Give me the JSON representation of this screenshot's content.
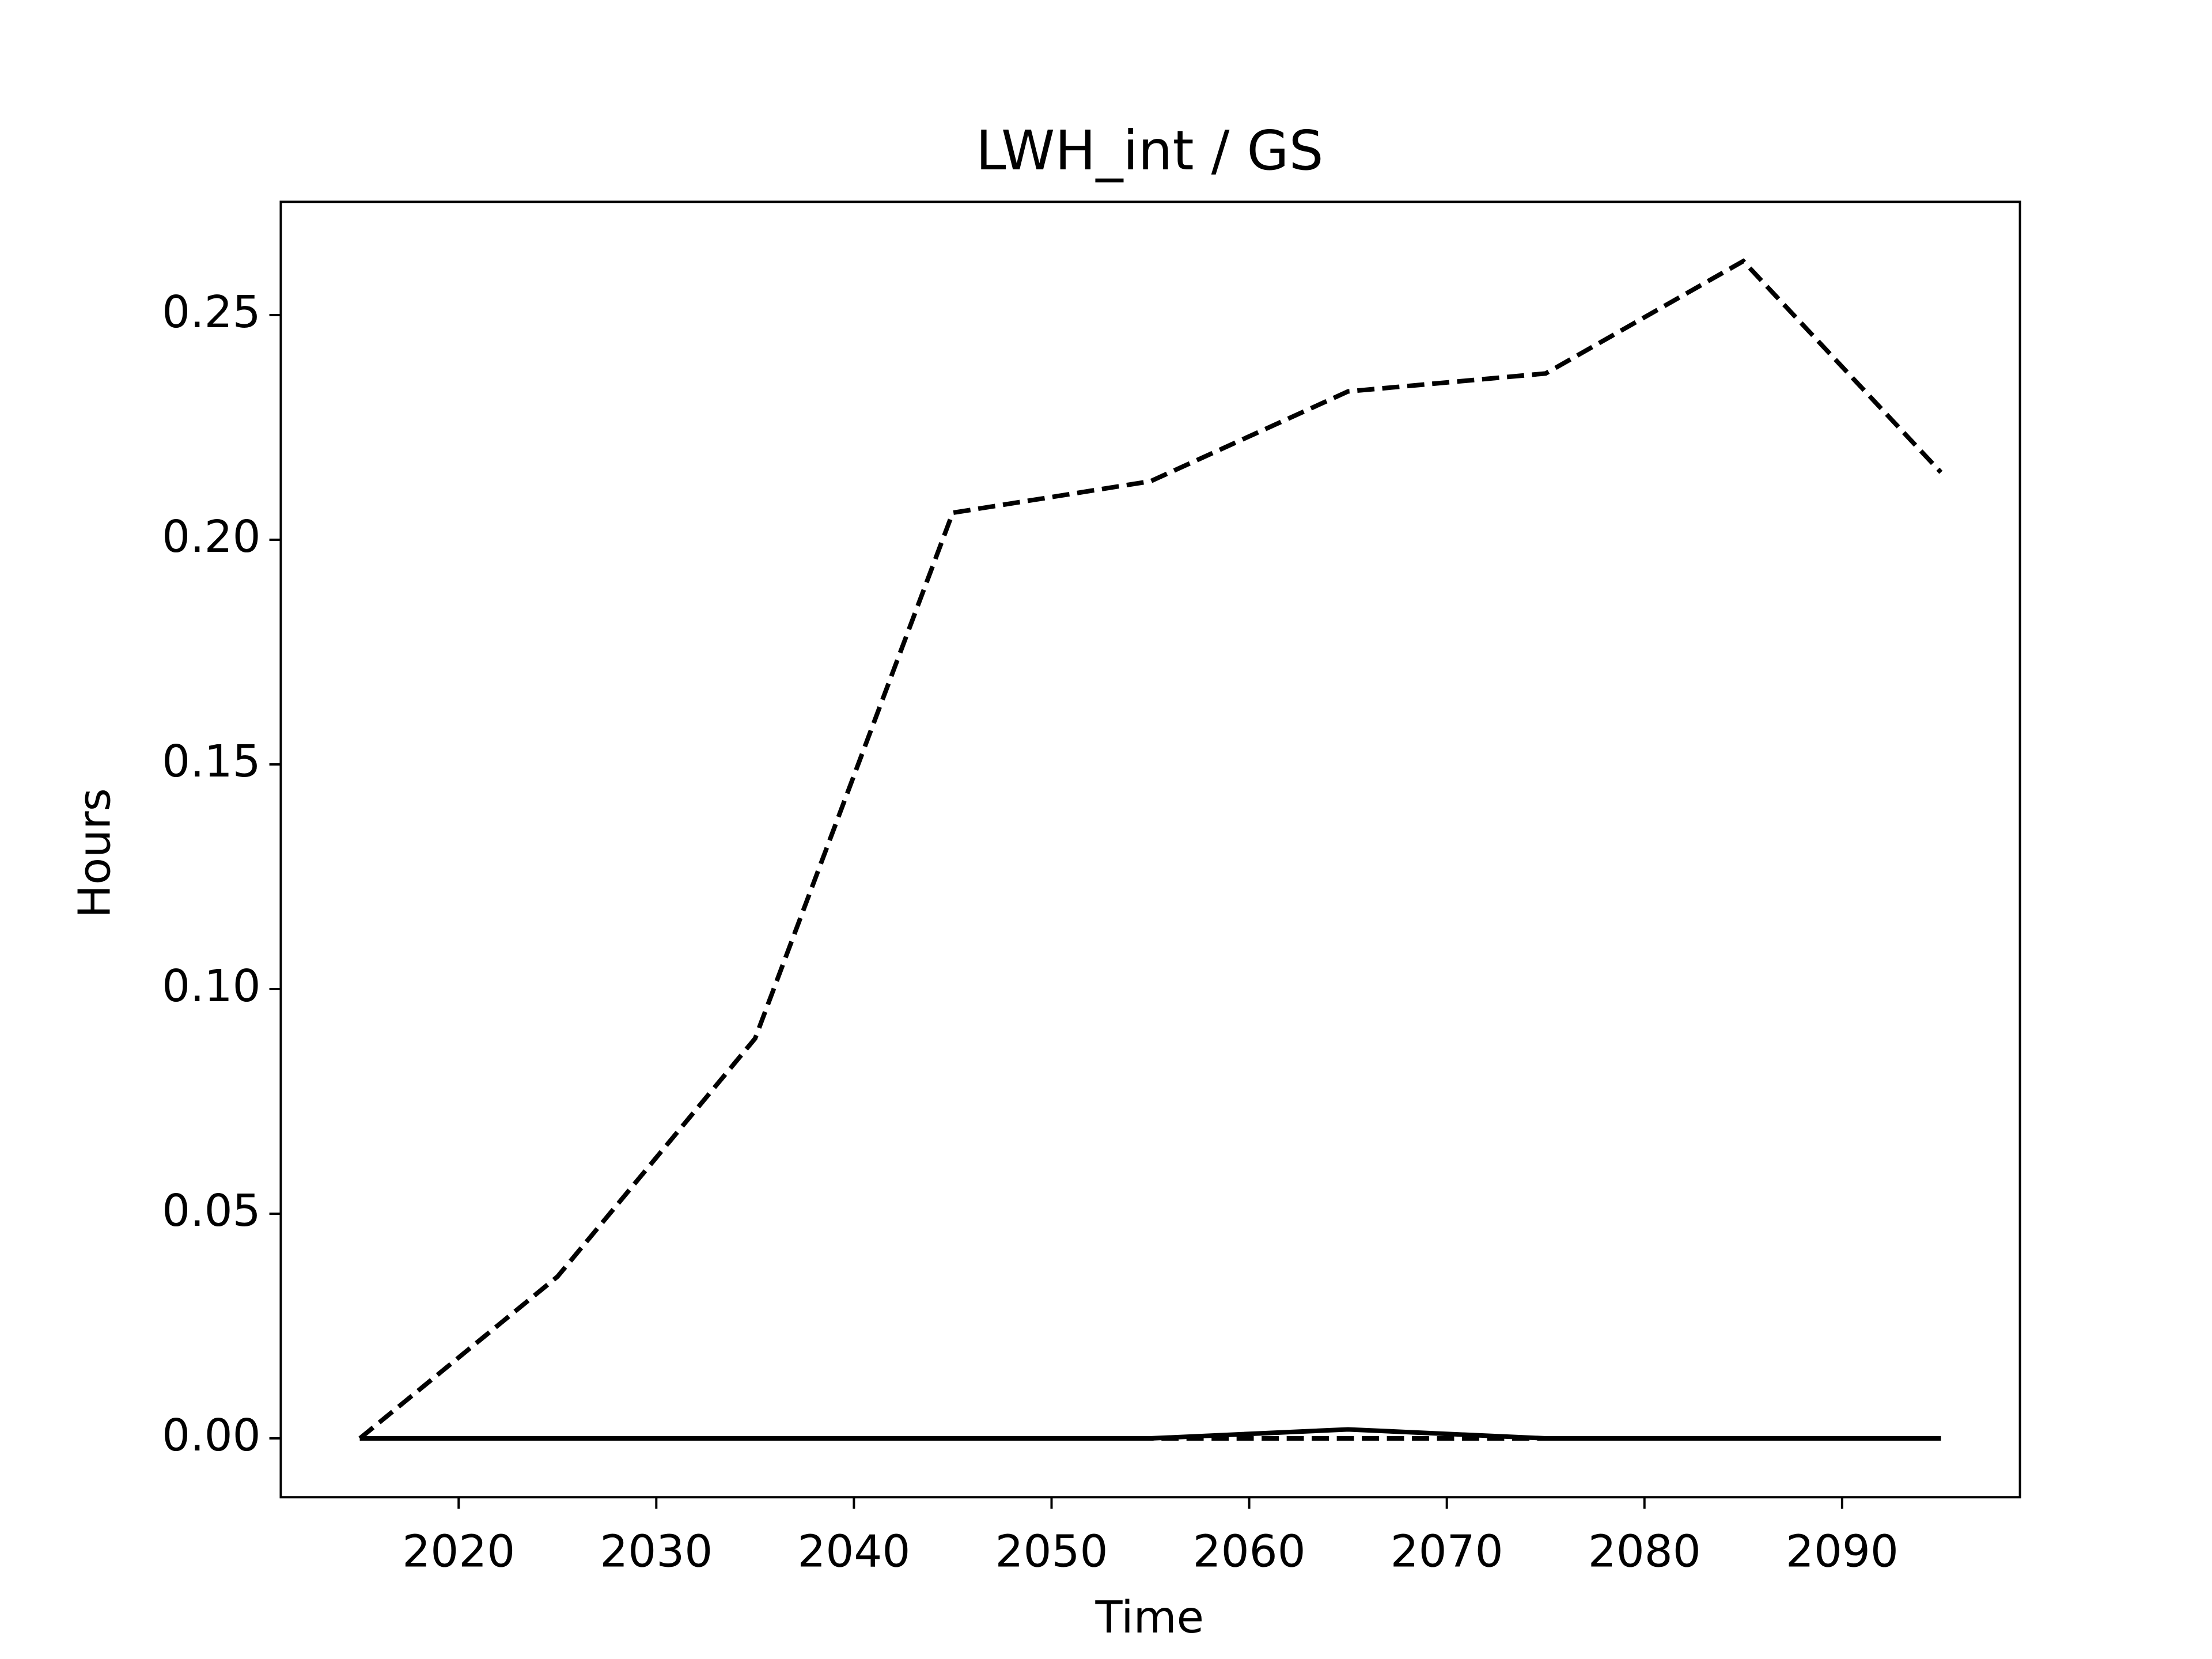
{
  "chart_data": {
    "type": "line",
    "title": "LWH_int / GS",
    "xlabel": "Time",
    "ylabel": "Hours",
    "x": [
      2015,
      2025,
      2035,
      2045,
      2055,
      2065,
      2075,
      2085,
      2095
    ],
    "series": [
      {
        "color": "#000000",
        "dash": true,
        "values": [
          0,
          0.036,
          0.089,
          0.206,
          0.213,
          0.233,
          0.237,
          0.262,
          0.215
        ]
      },
      {
        "color": "#000000",
        "dash": true,
        "values": [
          0,
          0,
          0,
          0,
          0,
          0,
          0,
          0,
          0
        ]
      },
      {
        "color": "#000000",
        "dash": false,
        "values": [
          0,
          0,
          0,
          0,
          0,
          0.002,
          0,
          0,
          0
        ]
      }
    ],
    "xlim": [
      2011,
      2099
    ],
    "xticks": [
      2020,
      2030,
      2040,
      2050,
      2060,
      2070,
      2080,
      2090
    ],
    "ylim": [
      -0.0131,
      0.2752
    ],
    "yticks": [
      {
        "value": 0,
        "label": "0.00"
      },
      {
        "value": 0.05,
        "label": "0.05"
      },
      {
        "value": 0.1,
        "label": "0.10"
      },
      {
        "value": 0.15,
        "label": "0.15"
      },
      {
        "value": 0.2,
        "label": "0.20"
      },
      {
        "value": 0.25,
        "label": "0.25"
      }
    ],
    "grid": false
  }
}
